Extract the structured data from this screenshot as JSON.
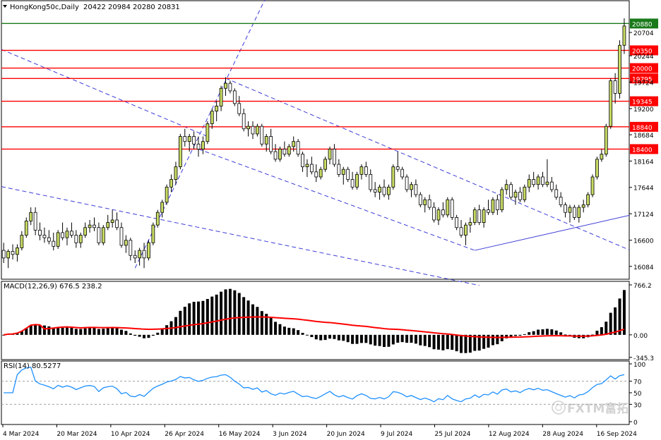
{
  "header": {
    "symbol_label": "HongKong50c,Daily",
    "ohlc_label": "20422 20984 20280 20831"
  },
  "watermark": {
    "text": "FXTM富拓",
    "note": "logo"
  },
  "colors": {
    "grid": "#c8c8c8",
    "frame": "#000000",
    "bull_body": "#c8dc64",
    "bear_body": "#ffffff",
    "candle_outline": "#000000",
    "level_line": "#ff0000",
    "top_line": "#1a7a1a",
    "trend_line": "#3c3cd8",
    "macd_hist": "#000000",
    "macd_signal": "#ff0000",
    "rsi_line": "#1e90ff",
    "price_tag_red": "#ff0000",
    "price_tag_green": "#1a7a1a"
  },
  "chart_data": [
    {
      "type": "candlestick",
      "title": "HongKong50c,Daily",
      "ylim": [
        15830,
        21080
      ],
      "y_ticks": [
        "20704",
        "20244",
        "19724",
        "19200",
        "18684",
        "18164",
        "17644",
        "17124",
        "16600",
        "16084"
      ],
      "x_tick_labels": [
        "4 Mar 2024",
        "20 Mar 2024",
        "10 Apr 2024",
        "26 Apr 2024",
        "16 May 2024",
        "3 Jun 2024",
        "20 Jun 2024",
        "9 Jul 2024",
        "25 Jul 2024",
        "12 Aug 2024",
        "28 Aug 2024",
        "16 Sep 2024"
      ],
      "levels": [
        {
          "value": 20880,
          "label": "20880",
          "kind": "top"
        },
        {
          "value": 20350,
          "label": "20350",
          "kind": "level"
        },
        {
          "value": 20000,
          "label": "20000",
          "kind": "level"
        },
        {
          "value": 19795,
          "label": "19795",
          "kind": "level"
        },
        {
          "value": 19345,
          "label": "19345",
          "kind": "level"
        },
        {
          "value": 18840,
          "label": "18840",
          "kind": "level"
        },
        {
          "value": 18400,
          "label": "18400",
          "kind": "level"
        }
      ],
      "candles": [
        [
          16400,
          16550,
          16150,
          16250
        ],
        [
          16250,
          16420,
          16050,
          16380
        ],
        [
          16380,
          16520,
          16220,
          16320
        ],
        [
          16320,
          16520,
          16180,
          16450
        ],
        [
          16450,
          16780,
          16400,
          16700
        ],
        [
          16700,
          17050,
          16650,
          16980
        ],
        [
          16980,
          17250,
          16900,
          17150
        ],
        [
          17150,
          17250,
          16700,
          16800
        ],
        [
          16800,
          16950,
          16600,
          16700
        ],
        [
          16700,
          16850,
          16550,
          16650
        ],
        [
          16650,
          16800,
          16520,
          16580
        ],
        [
          16580,
          16750,
          16400,
          16480
        ],
        [
          16480,
          16800,
          16430,
          16750
        ],
        [
          16750,
          16950,
          16600,
          16650
        ],
        [
          16650,
          16850,
          16500,
          16780
        ],
        [
          16780,
          16950,
          16650,
          16700
        ],
        [
          16700,
          16800,
          16450,
          16550
        ],
        [
          16550,
          16750,
          16450,
          16700
        ],
        [
          16700,
          16950,
          16650,
          16850
        ],
        [
          16850,
          17000,
          16750,
          16900
        ],
        [
          16900,
          17050,
          16780,
          16850
        ],
        [
          16850,
          16950,
          16500,
          16550
        ],
        [
          16550,
          16900,
          16500,
          16850
        ],
        [
          16850,
          17100,
          16800,
          16950
        ],
        [
          16950,
          17200,
          16850,
          17000
        ],
        [
          17000,
          17150,
          16800,
          16850
        ],
        [
          16850,
          16950,
          16450,
          16500
        ],
        [
          16500,
          16700,
          16350,
          16600
        ],
        [
          16600,
          16650,
          16200,
          16300
        ],
        [
          16300,
          16400,
          16150,
          16250
        ],
        [
          16250,
          16450,
          16100,
          16400
        ],
        [
          16400,
          16550,
          16050,
          16250
        ],
        [
          16250,
          16600,
          16200,
          16550
        ],
        [
          16550,
          16950,
          16500,
          16900
        ],
        [
          16900,
          17200,
          16850,
          17150
        ],
        [
          17150,
          17400,
          17050,
          17350
        ],
        [
          17350,
          17700,
          17300,
          17650
        ],
        [
          17650,
          17900,
          17550,
          17800
        ],
        [
          17800,
          18150,
          17700,
          18050
        ],
        [
          18050,
          18700,
          18000,
          18650
        ],
        [
          18650,
          18800,
          18450,
          18550
        ],
        [
          18550,
          18700,
          18350,
          18650
        ],
        [
          18650,
          18750,
          18400,
          18500
        ],
        [
          18500,
          18650,
          18250,
          18400
        ],
        [
          18400,
          18650,
          18300,
          18550
        ],
        [
          18550,
          18950,
          18500,
          18900
        ],
        [
          18900,
          19200,
          18800,
          19150
        ],
        [
          19150,
          19350,
          18950,
          19250
        ],
        [
          19250,
          19650,
          19150,
          19600
        ],
        [
          19600,
          19820,
          19450,
          19700
        ],
        [
          19700,
          19750,
          19500,
          19550
        ],
        [
          19550,
          19600,
          19250,
          19300
        ],
        [
          19300,
          19450,
          19050,
          19100
        ],
        [
          19100,
          19200,
          18750,
          18800
        ],
        [
          18800,
          18950,
          18650,
          18850
        ],
        [
          18850,
          18950,
          18600,
          18700
        ],
        [
          18700,
          18900,
          18650,
          18850
        ],
        [
          18850,
          18900,
          18450,
          18500
        ],
        [
          18500,
          18700,
          18350,
          18650
        ],
        [
          18650,
          18800,
          18300,
          18350
        ],
        [
          18350,
          18500,
          18150,
          18200
        ],
        [
          18200,
          18450,
          18150,
          18400
        ],
        [
          18400,
          18550,
          18250,
          18300
        ],
        [
          18300,
          18500,
          18250,
          18450
        ],
        [
          18450,
          18650,
          18350,
          18550
        ],
        [
          18550,
          18600,
          18250,
          18300
        ],
        [
          18300,
          18350,
          17950,
          18050
        ],
        [
          18050,
          18200,
          17850,
          18100
        ],
        [
          18100,
          18250,
          17900,
          17950
        ],
        [
          17950,
          18100,
          17750,
          17850
        ],
        [
          17850,
          18050,
          17800,
          18000
        ],
        [
          18000,
          18250,
          17950,
          18200
        ],
        [
          18200,
          18450,
          18100,
          18400
        ],
        [
          18400,
          18500,
          18050,
          18100
        ],
        [
          18100,
          18200,
          17850,
          17900
        ],
        [
          17900,
          18050,
          17700,
          18000
        ],
        [
          18000,
          18050,
          17750,
          17800
        ],
        [
          17800,
          17950,
          17600,
          17650
        ],
        [
          17650,
          17950,
          17600,
          17900
        ],
        [
          17900,
          18100,
          17800,
          18050
        ],
        [
          18050,
          18150,
          17850,
          17900
        ],
        [
          17900,
          18000,
          17550,
          17600
        ],
        [
          17600,
          17750,
          17450,
          17550
        ],
        [
          17550,
          17700,
          17400,
          17650
        ],
        [
          17650,
          17800,
          17450,
          17500
        ],
        [
          17500,
          17700,
          17400,
          17650
        ],
        [
          17650,
          18100,
          17600,
          18050
        ],
        [
          18050,
          18350,
          17950,
          18000
        ],
        [
          18000,
          18050,
          17800,
          17850
        ],
        [
          17850,
          17900,
          17550,
          17600
        ],
        [
          17600,
          17750,
          17450,
          17700
        ],
        [
          17700,
          17800,
          17450,
          17500
        ],
        [
          17500,
          17550,
          17250,
          17300
        ],
        [
          17300,
          17450,
          17150,
          17400
        ],
        [
          17400,
          17500,
          17200,
          17250
        ],
        [
          17250,
          17350,
          16950,
          17000
        ],
        [
          17000,
          17250,
          16900,
          17200
        ],
        [
          17200,
          17350,
          17050,
          17100
        ],
        [
          17100,
          17450,
          17050,
          17400
        ],
        [
          17400,
          17450,
          17000,
          17050
        ],
        [
          17050,
          17100,
          16800,
          16850
        ],
        [
          16850,
          17000,
          16650,
          16700
        ],
        [
          16700,
          16950,
          16500,
          16900
        ],
        [
          16900,
          17050,
          16750,
          16950
        ],
        [
          16950,
          17250,
          16900,
          17200
        ],
        [
          17200,
          17300,
          16900,
          16950
        ],
        [
          16950,
          17250,
          16850,
          17200
        ],
        [
          17200,
          17400,
          17100,
          17150
        ],
        [
          17150,
          17450,
          17100,
          17400
        ],
        [
          17400,
          17500,
          17100,
          17200
        ],
        [
          17200,
          17650,
          17150,
          17600
        ],
        [
          17600,
          17800,
          17500,
          17700
        ],
        [
          17700,
          17750,
          17400,
          17450
        ],
        [
          17450,
          17600,
          17300,
          17550
        ],
        [
          17550,
          17650,
          17350,
          17400
        ],
        [
          17400,
          17700,
          17350,
          17650
        ],
        [
          17650,
          17900,
          17550,
          17800
        ],
        [
          17800,
          17950,
          17650,
          17700
        ],
        [
          17700,
          17900,
          17600,
          17850
        ],
        [
          17850,
          17950,
          17650,
          17700
        ],
        [
          17700,
          18200,
          17650,
          17750
        ],
        [
          17750,
          17850,
          17550,
          17600
        ],
        [
          17600,
          17700,
          17400,
          17450
        ],
        [
          17450,
          17550,
          17250,
          17300
        ],
        [
          17300,
          17350,
          17050,
          17150
        ],
        [
          17150,
          17300,
          16950,
          17250
        ],
        [
          17250,
          17300,
          17000,
          17050
        ],
        [
          17050,
          17300,
          16950,
          17250
        ],
        [
          17250,
          17400,
          17150,
          17300
        ],
        [
          17300,
          17550,
          17250,
          17500
        ],
        [
          17500,
          17900,
          17450,
          17850
        ],
        [
          17850,
          18250,
          17800,
          18200
        ],
        [
          18200,
          18400,
          18150,
          18300
        ],
        [
          18300,
          18900,
          18250,
          18850
        ],
        [
          18850,
          19800,
          18800,
          19750
        ],
        [
          19750,
          19900,
          19300,
          19500
        ],
        [
          19500,
          20550,
          19400,
          20450
        ],
        [
          20450,
          20984,
          20280,
          20831
        ]
      ]
    },
    {
      "type": "macd",
      "label": "MACD(12,26,9) 676.5 238.2",
      "y_ticks": [
        "766.2",
        "0.00",
        "-345.3"
      ],
      "ylim": [
        -380,
        820
      ],
      "series": [
        {
          "name": "main",
          "values": []
        },
        {
          "name": "signal",
          "values": []
        }
      ]
    },
    {
      "type": "rsi",
      "label": "RSI(14) 80.5277",
      "y_ticks": [
        "100",
        "70",
        "50",
        "30",
        "0"
      ],
      "ylim": [
        0,
        100
      ],
      "series": [
        {
          "name": "RSI",
          "values": []
        }
      ]
    }
  ]
}
